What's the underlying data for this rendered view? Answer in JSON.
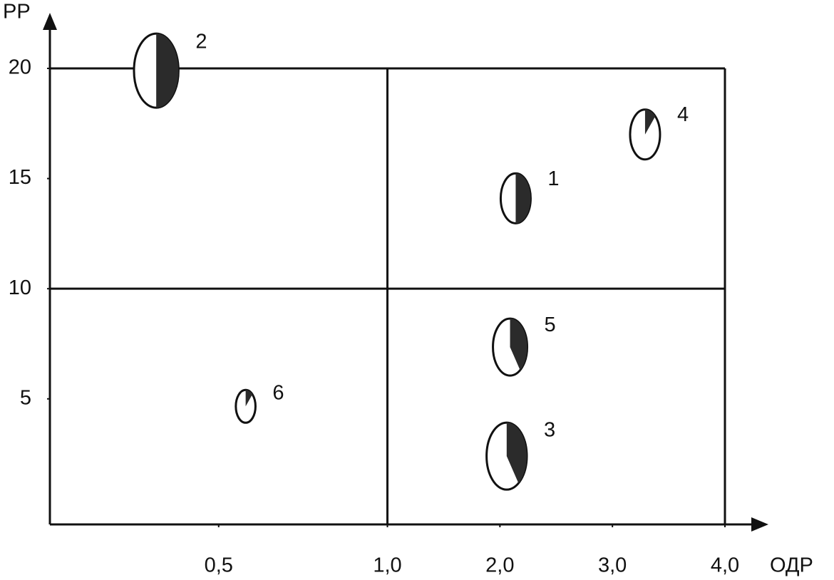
{
  "chart_data": {
    "type": "bubble",
    "x_label": "ОДР",
    "y_label": "РР",
    "xlim": [
      0,
      4
    ],
    "x_split": 1.0,
    "ylim": [
      -0.7,
      20
    ],
    "y_split": 10,
    "xticks": [
      {
        "value": 0.5,
        "label": "0,5"
      },
      {
        "value": 1.0,
        "label": "1,0"
      },
      {
        "value": 2.0,
        "label": "2,0"
      },
      {
        "value": 3.0,
        "label": "3,0"
      },
      {
        "value": 4.0,
        "label": "4,0"
      }
    ],
    "yticks": [
      5,
      10,
      15,
      20
    ],
    "outline_color": "#111111",
    "share_color": "#2b2b2b",
    "points": [
      {
        "name": "1",
        "x": 2.14,
        "y": 14.1,
        "size": 35,
        "share": 50
      },
      {
        "name": "2",
        "x": 0.315,
        "y": 19.9,
        "size": 52,
        "share": 50
      },
      {
        "name": "3",
        "x": 2.06,
        "y": 2.4,
        "size": 47,
        "share": 40
      },
      {
        "name": "4",
        "x": 3.29,
        "y": 17,
        "size": 35,
        "share": 12
      },
      {
        "name": "5",
        "x": 2.09,
        "y": 7.35,
        "size": 40,
        "share": 40
      },
      {
        "name": "6",
        "x": 0.58,
        "y": 4.66,
        "size": 23,
        "share": 12
      }
    ]
  }
}
